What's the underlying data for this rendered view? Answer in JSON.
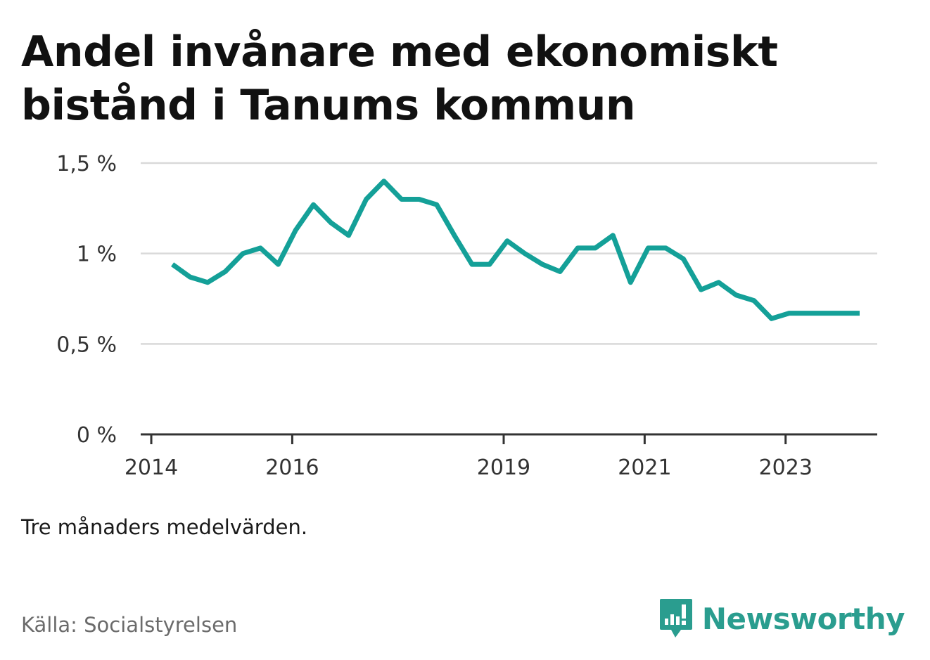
{
  "title": "Andel invånare med ekonomiskt bistånd i Tanums kommun",
  "note": "Tre månaders medelvärden.",
  "source": "Källa: Socialstyrelsen",
  "brand": {
    "name": "Newsworthy",
    "icon": "chart-bubble-icon"
  },
  "colors": {
    "line": "#14a098",
    "grid": "#d9d9d9",
    "axis": "#333333",
    "brand": "#2a9d8f"
  },
  "chart_data": {
    "type": "line",
    "title": "Andel invånare med ekonomiskt bistånd i Tanums kommun",
    "xlabel": "",
    "ylabel": "",
    "ylim": [
      0,
      1.5
    ],
    "yticks": [
      {
        "value": 0,
        "label": "0 %"
      },
      {
        "value": 0.5,
        "label": "0,5 %"
      },
      {
        "value": 1,
        "label": "1 %"
      },
      {
        "value": 1.5,
        "label": "1,5 %"
      }
    ],
    "xticks": [
      {
        "value": 2014.0,
        "label": "2014"
      },
      {
        "value": 2016.0,
        "label": "2016"
      },
      {
        "value": 2019.0,
        "label": "2019"
      },
      {
        "value": 2021.0,
        "label": "2021"
      },
      {
        "value": 2023.0,
        "label": "2023"
      }
    ],
    "xlim": [
      2013.85,
      2024.3
    ],
    "grid": true,
    "series": [
      {
        "x": [
          2014.3,
          2014.55,
          2014.8,
          2015.05,
          2015.3,
          2015.55,
          2015.8,
          2016.05,
          2016.3,
          2016.55,
          2016.8,
          2017.05,
          2017.3,
          2017.55,
          2017.8,
          2018.05,
          2018.3,
          2018.55,
          2018.8,
          2019.05,
          2019.3,
          2019.55,
          2019.8,
          2020.05,
          2020.3,
          2020.55,
          2020.8,
          2021.05,
          2021.3,
          2021.55,
          2021.8,
          2022.05,
          2022.3,
          2022.55,
          2022.8,
          2023.05,
          2023.3,
          2023.55,
          2023.8,
          2024.05
        ],
        "values": [
          0.94,
          0.87,
          0.84,
          0.9,
          1.0,
          1.03,
          0.94,
          1.13,
          1.27,
          1.17,
          1.1,
          1.3,
          1.4,
          1.3,
          1.3,
          1.27,
          1.1,
          0.94,
          0.94,
          1.07,
          1.0,
          0.94,
          0.9,
          1.03,
          1.03,
          1.1,
          0.84,
          1.03,
          1.03,
          0.97,
          0.8,
          0.84,
          0.77,
          0.74,
          0.64,
          0.67,
          0.67,
          0.67,
          0.67,
          0.67
        ]
      }
    ]
  }
}
